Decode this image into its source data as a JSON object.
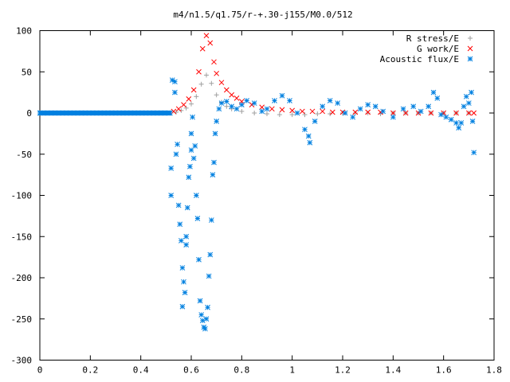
{
  "chart_data": {
    "type": "scatter",
    "title": "m4/n1.5/q1.75/r-+.30-j155/M0.0/512",
    "xlabel": "",
    "ylabel": "",
    "xlim": [
      0,
      1.8
    ],
    "ylim": [
      -300,
      100
    ],
    "xticks": [
      0,
      0.2,
      0.4,
      0.6,
      0.8,
      1,
      1.2,
      1.4,
      1.6,
      1.8
    ],
    "yticks": [
      -300,
      -250,
      -200,
      -150,
      -100,
      -50,
      0,
      50,
      100
    ],
    "xtick_labels": [
      "0",
      "0.2",
      "0.4",
      "0.6",
      "0.8",
      "1",
      "1.2",
      "1.4",
      "1.6",
      "1.8"
    ],
    "ytick_labels": [
      "-300",
      "-250",
      "-200",
      "-150",
      "-100",
      "-50",
      "0",
      "50",
      "100"
    ],
    "grid": false,
    "legend_position": "top-right",
    "series": [
      {
        "name": "R stress/E",
        "marker": "plus",
        "color": "#a0a0a0",
        "points": [
          [
            0.52,
            0
          ],
          [
            0.54,
            1
          ],
          [
            0.56,
            3
          ],
          [
            0.58,
            6
          ],
          [
            0.6,
            11
          ],
          [
            0.62,
            20
          ],
          [
            0.64,
            35
          ],
          [
            0.66,
            46
          ],
          [
            0.68,
            36
          ],
          [
            0.7,
            22
          ],
          [
            0.72,
            13
          ],
          [
            0.74,
            8
          ],
          [
            0.76,
            5
          ],
          [
            0.8,
            2
          ],
          [
            0.85,
            0
          ],
          [
            0.9,
            -1
          ],
          [
            0.95,
            -2
          ],
          [
            1.0,
            -2
          ],
          [
            1.05,
            -2
          ],
          [
            1.1,
            -1
          ],
          [
            1.15,
            -1
          ],
          [
            1.2,
            0
          ],
          [
            1.25,
            0
          ],
          [
            1.3,
            0
          ],
          [
            1.35,
            -1
          ],
          [
            1.4,
            0
          ],
          [
            1.45,
            0
          ],
          [
            1.5,
            0
          ],
          [
            1.55,
            0
          ],
          [
            1.6,
            0
          ],
          [
            1.65,
            0
          ],
          [
            1.7,
            0
          ]
        ]
      },
      {
        "name": "G work/E",
        "marker": "cross",
        "color": "#ff0000",
        "points": [
          [
            0.53,
            2
          ],
          [
            0.55,
            5
          ],
          [
            0.57,
            10
          ],
          [
            0.59,
            17
          ],
          [
            0.61,
            28
          ],
          [
            0.63,
            50
          ],
          [
            0.645,
            78
          ],
          [
            0.66,
            94
          ],
          [
            0.675,
            85
          ],
          [
            0.69,
            62
          ],
          [
            0.7,
            48
          ],
          [
            0.72,
            37
          ],
          [
            0.74,
            28
          ],
          [
            0.76,
            22
          ],
          [
            0.78,
            18
          ],
          [
            0.8,
            14
          ],
          [
            0.84,
            10
          ],
          [
            0.88,
            7
          ],
          [
            0.92,
            5
          ],
          [
            0.96,
            4
          ],
          [
            1.0,
            3
          ],
          [
            1.04,
            2
          ],
          [
            1.08,
            2
          ],
          [
            1.12,
            2
          ],
          [
            1.16,
            1
          ],
          [
            1.2,
            1
          ],
          [
            1.25,
            1
          ],
          [
            1.3,
            1
          ],
          [
            1.35,
            1
          ],
          [
            1.4,
            0
          ],
          [
            1.45,
            0
          ],
          [
            1.5,
            0
          ],
          [
            1.55,
            0
          ],
          [
            1.6,
            0
          ],
          [
            1.65,
            0
          ],
          [
            1.7,
            0
          ],
          [
            1.72,
            0
          ]
        ]
      },
      {
        "name": "Acoustic flux/E",
        "marker": "star",
        "color": "#0080e0",
        "points": [
          [
            0.52,
            -67
          ],
          [
            0.52,
            -100
          ],
          [
            0.525,
            40
          ],
          [
            0.535,
            38
          ],
          [
            0.535,
            25
          ],
          [
            0.54,
            -50
          ],
          [
            0.545,
            -38
          ],
          [
            0.55,
            -112
          ],
          [
            0.555,
            -135
          ],
          [
            0.56,
            -155
          ],
          [
            0.565,
            -188
          ],
          [
            0.565,
            -235
          ],
          [
            0.57,
            -205
          ],
          [
            0.575,
            -218
          ],
          [
            0.58,
            -150
          ],
          [
            0.58,
            -160
          ],
          [
            0.585,
            -115
          ],
          [
            0.59,
            -78
          ],
          [
            0.595,
            -65
          ],
          [
            0.6,
            -45
          ],
          [
            0.6,
            -25
          ],
          [
            0.605,
            -5
          ],
          [
            0.61,
            -55
          ],
          [
            0.615,
            -40
          ],
          [
            0.62,
            -100
          ],
          [
            0.625,
            -128
          ],
          [
            0.63,
            -178
          ],
          [
            0.635,
            -228
          ],
          [
            0.64,
            -245
          ],
          [
            0.645,
            -252
          ],
          [
            0.65,
            -260
          ],
          [
            0.655,
            -262
          ],
          [
            0.66,
            -250
          ],
          [
            0.665,
            -236
          ],
          [
            0.67,
            -198
          ],
          [
            0.675,
            -172
          ],
          [
            0.68,
            -130
          ],
          [
            0.685,
            -75
          ],
          [
            0.69,
            -60
          ],
          [
            0.695,
            -25
          ],
          [
            0.7,
            -10
          ],
          [
            0.71,
            5
          ],
          [
            0.72,
            12
          ],
          [
            0.74,
            14
          ],
          [
            0.76,
            8
          ],
          [
            0.78,
            5
          ],
          [
            0.8,
            10
          ],
          [
            0.82,
            15
          ],
          [
            0.85,
            12
          ],
          [
            0.88,
            2
          ],
          [
            0.9,
            5
          ],
          [
            0.93,
            15
          ],
          [
            0.96,
            21
          ],
          [
            0.99,
            15
          ],
          [
            1.02,
            0
          ],
          [
            1.05,
            -20
          ],
          [
            1.065,
            -28
          ],
          [
            1.07,
            -36
          ],
          [
            1.09,
            -10
          ],
          [
            1.12,
            8
          ],
          [
            1.15,
            15
          ],
          [
            1.18,
            12
          ],
          [
            1.21,
            0
          ],
          [
            1.24,
            -5
          ],
          [
            1.27,
            5
          ],
          [
            1.3,
            10
          ],
          [
            1.33,
            8
          ],
          [
            1.36,
            2
          ],
          [
            1.4,
            -5
          ],
          [
            1.44,
            5
          ],
          [
            1.48,
            8
          ],
          [
            1.51,
            2
          ],
          [
            1.54,
            8
          ],
          [
            1.56,
            25
          ],
          [
            1.575,
            18
          ],
          [
            1.59,
            -2
          ],
          [
            1.61,
            -5
          ],
          [
            1.63,
            -8
          ],
          [
            1.65,
            -12
          ],
          [
            1.66,
            -18
          ],
          [
            1.67,
            -12
          ],
          [
            1.68,
            8
          ],
          [
            1.69,
            20
          ],
          [
            1.7,
            12
          ],
          [
            1.71,
            25
          ],
          [
            1.715,
            -10
          ],
          [
            1.72,
            -48
          ]
        ]
      }
    ]
  }
}
